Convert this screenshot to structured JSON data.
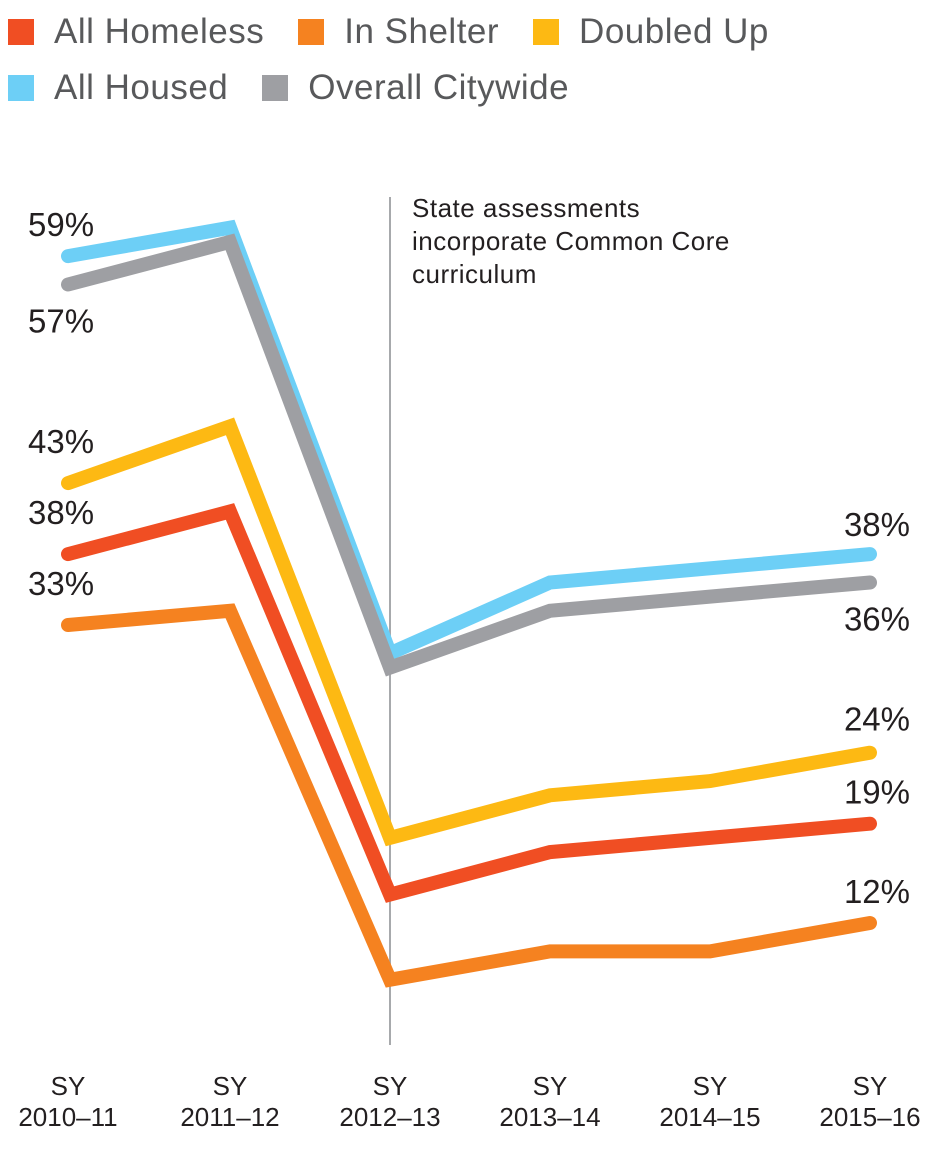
{
  "chart_data": {
    "type": "line",
    "title": "",
    "xlabel": "",
    "ylabel": "",
    "categories": [
      "SY 2010–11",
      "SY 2011–12",
      "SY 2012–13",
      "SY 2013–14",
      "SY 2014–15",
      "SY 2015–16"
    ],
    "tick_labels": [
      [
        "SY",
        "2010–11"
      ],
      [
        "SY",
        "2011–12"
      ],
      [
        "SY",
        "2012–13"
      ],
      [
        "SY",
        "2013–14"
      ],
      [
        "SY",
        "2014–15"
      ],
      [
        "SY",
        "2015–16"
      ]
    ],
    "ylim": [
      0,
      70
    ],
    "grid": false,
    "legend_placement": "top-left",
    "series": [
      {
        "name": "All Homeless",
        "color": "#f04e23",
        "values": [
          38,
          41,
          14,
          17,
          18,
          19
        ],
        "first_label": "38%",
        "last_label": "19%"
      },
      {
        "name": "In Shelter",
        "color": "#f58220",
        "values": [
          33,
          34,
          8,
          10,
          10,
          12
        ],
        "first_label": "33%",
        "last_label": "12%"
      },
      {
        "name": "Doubled Up",
        "color": "#fdb913",
        "values": [
          43,
          47,
          18,
          21,
          22,
          24
        ],
        "first_label": "43%",
        "last_label": "24%"
      },
      {
        "name": "All Housed",
        "color": "#6dcff6",
        "values": [
          59,
          61,
          31,
          36,
          37,
          38
        ],
        "first_label": "59%",
        "last_label": "38%"
      },
      {
        "name": "Overall Citywide",
        "color": "#9e9fa3",
        "values": [
          57,
          60,
          30,
          34,
          35,
          36
        ],
        "first_label": "57%",
        "last_label": "36%"
      }
    ],
    "annotation": {
      "at_category": "SY 2012–13",
      "lines": [
        "State assessments",
        "incorporate Common Core",
        "curriculum"
      ],
      "color": "#a7a9ac"
    }
  }
}
